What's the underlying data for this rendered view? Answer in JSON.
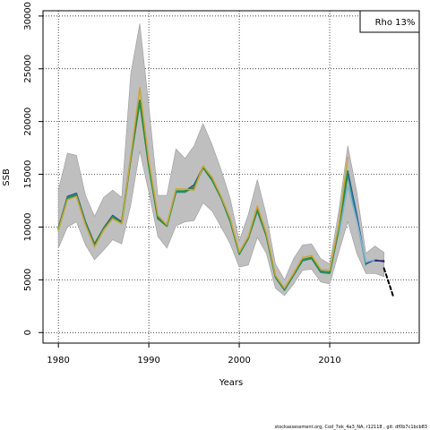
{
  "chart_data": {
    "type": "line",
    "xlabel": "Years",
    "ylabel": "SSB",
    "xlim": [
      1978.3,
      2019.9
    ],
    "ylim": [
      -1000,
      30500
    ],
    "x_ticks": [
      1980,
      1990,
      2000,
      2010
    ],
    "y_ticks": [
      0,
      5000,
      10000,
      15000,
      20000,
      25000,
      30000
    ],
    "grid": true,
    "legend": {
      "text": "Rho 13%",
      "placement": "top-right"
    },
    "confidence_band": {
      "color": "#bfbfbf",
      "x": [
        1980,
        1981,
        1982,
        1983,
        1984,
        1985,
        1986,
        1987,
        1988,
        1989,
        1990,
        1991,
        1992,
        1993,
        1994,
        1995,
        1996,
        1997,
        1998,
        1999,
        2000,
        2001,
        2002,
        2003,
        2004,
        2005,
        2006,
        2007,
        2008,
        2009,
        2010,
        2011,
        2012,
        2013,
        2014,
        2015,
        2016
      ],
      "upper": [
        13500,
        17000,
        16800,
        13000,
        11000,
        12800,
        13500,
        12800,
        24500,
        29300,
        21500,
        13000,
        13000,
        17400,
        16500,
        17700,
        19800,
        17800,
        15400,
        12700,
        8700,
        11200,
        14500,
        11100,
        6500,
        5000,
        7000,
        8300,
        8400,
        7000,
        6500,
        11500,
        17700,
        13300,
        7500,
        8200,
        7600
      ],
      "lower": [
        8000,
        10000,
        10500,
        8300,
        6900,
        7800,
        8800,
        8400,
        12100,
        17200,
        13300,
        9100,
        8000,
        10100,
        10500,
        10600,
        12300,
        11500,
        10000,
        8400,
        6200,
        6400,
        9000,
        7500,
        4200,
        3500,
        4600,
        5900,
        6000,
        4800,
        4600,
        7600,
        10500,
        7500,
        5600,
        5600,
        5300
      ]
    },
    "x": [
      1980,
      1981,
      1982,
      1983,
      1984,
      1985,
      1986,
      1987,
      1988,
      1989,
      1990,
      1991,
      1992,
      1993,
      1994,
      1995,
      1996,
      1997,
      1998,
      1999,
      2000,
      2001,
      2002,
      2003,
      2004,
      2005,
      2006,
      2007,
      2008,
      2009,
      2010,
      2011,
      2012,
      2013,
      2014,
      2015,
      2016,
      2017
    ],
    "series": [
      {
        "color": "#2d4b8a",
        "width": 1.5,
        "values": [
          9900,
          12900,
          13200,
          10500,
          8400,
          9900,
          11100,
          10500,
          16500,
          22000,
          15800,
          10900,
          10200,
          13300,
          13400,
          14000,
          15700,
          14500,
          12800,
          10600,
          7500,
          9000,
          11600,
          9200,
          5300,
          4100,
          5500,
          6900,
          7100,
          5800,
          5700,
          9800,
          15300,
          11100,
          6500,
          6900,
          6700,
          null
        ]
      },
      {
        "color": "#2a9090",
        "width": 1.5,
        "values": [
          9900,
          12800,
          13100,
          10400,
          8300,
          9800,
          11000,
          10400,
          16400,
          21800,
          15700,
          10800,
          10100,
          13300,
          13300,
          13800,
          15600,
          14400,
          12700,
          10500,
          7400,
          8900,
          11500,
          9100,
          5200,
          4000,
          5400,
          6800,
          7000,
          5700,
          5600,
          9700,
          14900,
          10700,
          6400,
          null,
          null,
          null
        ]
      },
      {
        "color": "#2e8b3a",
        "width": 2,
        "values": [
          9800,
          12700,
          13000,
          10300,
          8300,
          9800,
          10900,
          10400,
          16500,
          22000,
          15800,
          10800,
          10100,
          13400,
          13400,
          13700,
          15700,
          14500,
          12800,
          10600,
          7500,
          9000,
          11700,
          9200,
          5300,
          4100,
          5500,
          6900,
          7100,
          5800,
          5700,
          9900,
          15300,
          null,
          null,
          null,
          null,
          null
        ]
      },
      {
        "color": "#c9a53a",
        "width": 1.5,
        "values": [
          9700,
          12600,
          12900,
          10200,
          8100,
          9700,
          10800,
          10300,
          16700,
          23200,
          16300,
          11100,
          10200,
          13600,
          13600,
          13500,
          15800,
          14700,
          12900,
          10800,
          7600,
          9100,
          12000,
          9400,
          5400,
          4200,
          5600,
          7100,
          7300,
          6000,
          5900,
          10200,
          16600,
          null,
          null,
          null,
          null,
          null
        ]
      },
      {
        "color": "#7db6d4",
        "width": 1.5,
        "values": [
          null,
          null,
          null,
          null,
          null,
          null,
          null,
          null,
          null,
          null,
          null,
          null,
          null,
          null,
          null,
          null,
          null,
          null,
          null,
          null,
          null,
          null,
          null,
          null,
          null,
          null,
          null,
          null,
          null,
          null,
          null,
          9200,
          13900,
          10600,
          6700,
          6900,
          null,
          null
        ]
      },
      {
        "color": "#1f1f6e",
        "width": 1.5,
        "values": [
          null,
          null,
          null,
          null,
          null,
          null,
          null,
          null,
          null,
          null,
          null,
          null,
          null,
          null,
          null,
          null,
          null,
          null,
          null,
          null,
          null,
          null,
          null,
          null,
          null,
          null,
          null,
          null,
          null,
          null,
          null,
          null,
          null,
          null,
          null,
          6800,
          6800,
          null
        ]
      },
      {
        "color": "#000000",
        "width": 2,
        "dash": "4,3",
        "values": [
          null,
          null,
          null,
          null,
          null,
          null,
          null,
          null,
          null,
          null,
          null,
          null,
          null,
          null,
          null,
          null,
          null,
          null,
          null,
          null,
          null,
          null,
          null,
          null,
          null,
          null,
          null,
          null,
          null,
          null,
          null,
          null,
          null,
          null,
          null,
          null,
          6100,
          3500
        ]
      }
    ]
  },
  "footer": {
    "text": "stockassessment.org, Cod_7ek_4a3_NA, r12118 , git: df0b7c1bcb83"
  }
}
